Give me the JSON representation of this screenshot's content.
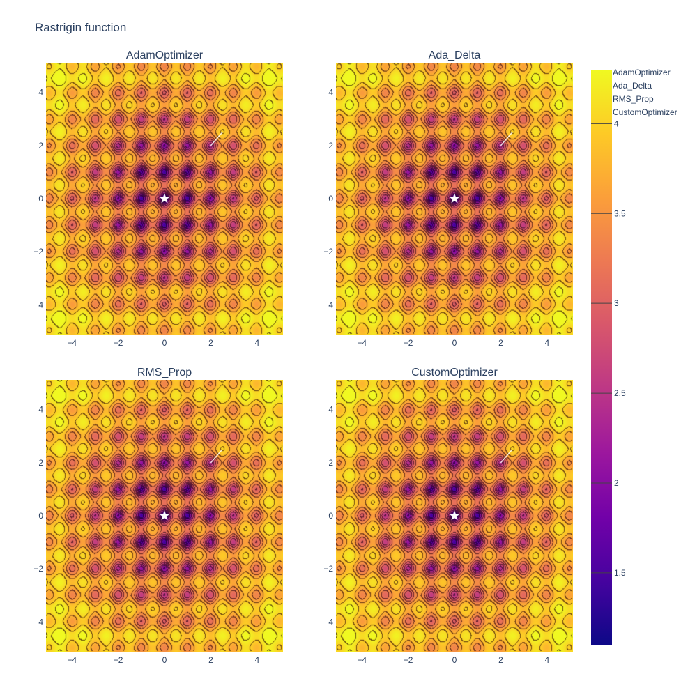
{
  "title": "Rastrigin function",
  "chart_data": {
    "type": "heatmap",
    "function": "Rastrigin function",
    "scale": "log10 of function value",
    "colorscale": "Plasma",
    "xlim": [
      -5.12,
      5.12
    ],
    "ylim": [
      -5.12,
      5.12
    ],
    "x_ticks": [
      -4,
      -2,
      0,
      2,
      4
    ],
    "y_ticks": [
      -4,
      -2,
      0,
      2,
      4
    ],
    "x_tick_labels": [
      "−4",
      "−2",
      "0",
      "2",
      "4"
    ],
    "y_tick_labels": [
      "−4",
      "−2",
      "0",
      "2",
      "4"
    ],
    "global_minimum": {
      "x": 0,
      "y": 0,
      "marker": "star",
      "color": "#ffffff"
    },
    "colorbar": {
      "range": [
        1.1,
        4.3
      ],
      "ticks": [
        1.5,
        2,
        2.5,
        3,
        3.5,
        4
      ],
      "tick_labels": [
        "1.5",
        "2",
        "2.5",
        "3",
        "3.5",
        "4"
      ]
    },
    "panels": [
      {
        "title": "AdamOptimizer",
        "path": {
          "x": [
            2.0,
            2.5
          ],
          "y": [
            2.0,
            2.5
          ]
        }
      },
      {
        "title": "Ada_Delta",
        "path": {
          "x": [
            2.0,
            2.5
          ],
          "y": [
            2.0,
            2.5
          ]
        }
      },
      {
        "title": "RMS_Prop",
        "path": {
          "x": [
            2.0,
            2.5
          ],
          "y": [
            2.0,
            2.5
          ]
        }
      },
      {
        "title": "CustomOptimizer",
        "path": {
          "x": [
            2.0,
            2.5
          ],
          "y": [
            2.0,
            2.5
          ]
        }
      }
    ],
    "legend": {
      "placement": "top-right",
      "entries": [
        "AdamOptimizer",
        "Ada_Delta",
        "RMS_Prop",
        "CustomOptimizer"
      ]
    }
  }
}
